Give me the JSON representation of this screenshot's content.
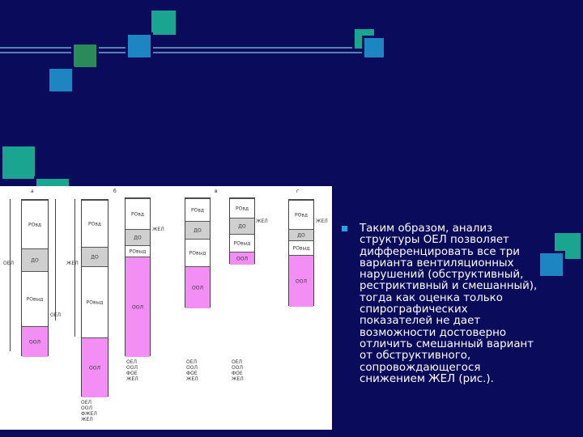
{
  "slide": {
    "bullet_text": "Таким образом, анализ структуры ОЕЛ позволяет дифференцировать все три варианта вентиляционных нарушений (обструктивный, рестриктивный и смешанный), тогда как оценка только спирографических показателей не дает возможности достоверно отличить смешанный вариант от обструктивного, сопровождающегося снижением ЖЕЛ (рис.)."
  },
  "figure": {
    "panels": [
      "а",
      "б",
      "в",
      "г"
    ],
    "side_labels": {
      "a_oel": "ОЕЛ",
      "a_oel2": "ОЕЛ",
      "b_zhel": "ЖЕЛ",
      "c_zhel": "ЖЕЛ",
      "d_zhel": "ЖЕЛ",
      "e_zhel": "ЖЕЛ"
    },
    "columns": {
      "a": [
        "РОвд",
        "ДО",
        "РОвыд",
        "ООЛ"
      ],
      "b": [
        "РОвд",
        "ДО",
        "РОвыд",
        "ООЛ"
      ],
      "c": [
        "РОвд",
        "ДО",
        "РОвыд",
        "ООЛ"
      ],
      "d": [
        "РОвд",
        "ДО",
        "РОвыд",
        "ООЛ"
      ],
      "e": [
        "РОвд",
        "ДО",
        "РОвыд",
        "ООЛ"
      ],
      "f": [
        "РОвд",
        "ДО",
        "РОвыд",
        "ООЛ"
      ]
    },
    "legends": {
      "b": [
        "ОЕЛ",
        "ООЛ",
        "ФЖЕЛ",
        "ЖЕЛ"
      ],
      "c": [
        "ОЕЛ",
        "ООЛ",
        "ФОЕ",
        "ЖЕЛ"
      ],
      "d": [
        "ОЕЛ",
        "ООЛ",
        "ФОЕ",
        "ЖЕЛ"
      ],
      "e": [
        "ОЕЛ",
        "ООЛ",
        "ФОЕ",
        "ЖЕЛ"
      ]
    }
  },
  "colors": {
    "background": "#0b0b5c",
    "line": "#5a7fb5",
    "teal": "#1aa591",
    "green": "#2a8a5a",
    "blue": "#1d86c2",
    "pink": "#f38ef5",
    "gray": "#cfcfcf",
    "bullet": "#2aa0e0"
  },
  "icons": [
    "square-bullet-icon"
  ]
}
